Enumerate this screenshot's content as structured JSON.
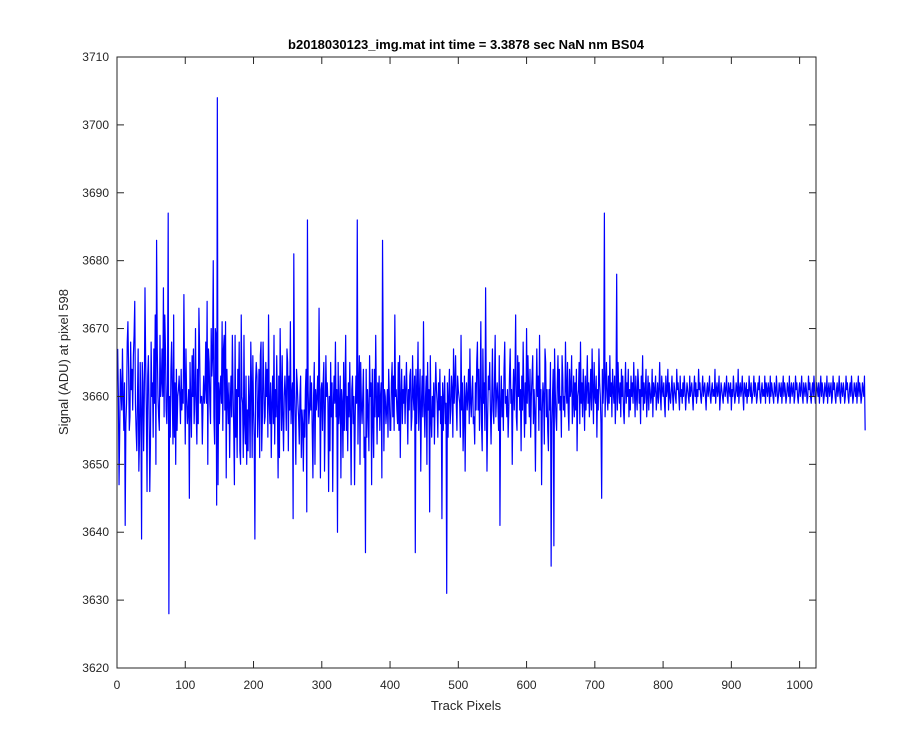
{
  "chart_data": {
    "type": "line",
    "title": "b2018030123_img.mat int time = 3.3878 sec  NaN nm BS04",
    "xlabel": "Track Pixels",
    "ylabel": "Signal (ADU) at pixel 598",
    "xlim": [
      0,
      1024
    ],
    "ylim": [
      3620,
      3710
    ],
    "xticks": [
      "0",
      "100",
      "200",
      "300",
      "400",
      "500",
      "600",
      "700",
      "800",
      "900",
      "1000"
    ],
    "yticks": [
      "3620",
      "3630",
      "3640",
      "3650",
      "3660",
      "3670",
      "3680",
      "3690",
      "3700",
      "3710"
    ],
    "grid": false,
    "legend": "none",
    "line_color": "#0000ff",
    "series": [
      {
        "x_start": 1,
        "x_step": 1,
        "values": [
          3667,
          3660,
          3647,
          3655,
          3664,
          3661,
          3658,
          3667,
          3660,
          3655,
          3662,
          3641,
          3656,
          3659,
          3668,
          3671,
          3664,
          3655,
          3657,
          3668,
          3661,
          3664,
          3658,
          3666,
          3669,
          3674,
          3659,
          3655,
          3652,
          3660,
          3667,
          3649,
          3654,
          3665,
          3658,
          3639,
          3665,
          3662,
          3652,
          3660,
          3676,
          3665,
          3658,
          3646,
          3663,
          3666,
          3658,
          3646,
          3653,
          3668,
          3660,
          3662,
          3654,
          3667,
          3659,
          3672,
          3650,
          3683,
          3667,
          3660,
          3657,
          3655,
          3669,
          3660,
          3662,
          3667,
          3660,
          3676,
          3657,
          3672,
          3667,
          3658,
          3656,
          3662,
          3687,
          3628,
          3660,
          3654,
          3664,
          3668,
          3660,
          3653,
          3672,
          3654,
          3662,
          3650,
          3664,
          3655,
          3660,
          3661,
          3663,
          3660,
          3656,
          3664,
          3658,
          3661,
          3659,
          3675,
          3663,
          3653,
          3667,
          3660,
          3656,
          3658,
          3661,
          3645,
          3665,
          3659,
          3654,
          3666,
          3660,
          3667,
          3656,
          3660,
          3670,
          3658,
          3653,
          3664,
          3656,
          3673,
          3667,
          3659,
          3660,
          3660,
          3653,
          3659,
          3663,
          3659,
          3661,
          3668,
          3659,
          3674,
          3650,
          3667,
          3665,
          3659,
          3656,
          3670,
          3663,
          3666,
          3680,
          3657,
          3653,
          3670,
          3669,
          3644,
          3704,
          3647,
          3662,
          3656,
          3661,
          3663,
          3659,
          3671,
          3655,
          3667,
          3669,
          3658,
          3671,
          3648,
          3664,
          3660,
          3656,
          3662,
          3651,
          3659,
          3663,
          3657,
          3669,
          3661,
          3655,
          3647,
          3669,
          3654,
          3661,
          3651,
          3664,
          3660,
          3668,
          3652,
          3650,
          3672,
          3660,
          3659,
          3651,
          3669,
          3656,
          3653,
          3663,
          3650,
          3658,
          3652,
          3663,
          3659,
          3651,
          3668,
          3662,
          3651,
          3666,
          3658,
          3654,
          3639,
          3662,
          3665,
          3663,
          3654,
          3658,
          3664,
          3651,
          3666,
          3668,
          3652,
          3657,
          3668,
          3662,
          3656,
          3657,
          3665,
          3660,
          3664,
          3654,
          3672,
          3659,
          3656,
          3662,
          3651,
          3659,
          3663,
          3656,
          3669,
          3653,
          3661,
          3657,
          3666,
          3658,
          3648,
          3663,
          3651,
          3670,
          3661,
          3655,
          3666,
          3657,
          3652,
          3660,
          3663,
          3660,
          3655,
          3667,
          3665,
          3652,
          3663,
          3658,
          3671,
          3656,
          3660,
          3662,
          3642,
          3681,
          3661,
          3656,
          3650,
          3664,
          3662,
          3659,
          3657,
          3653,
          3660,
          3663,
          3651,
          3658,
          3656,
          3649,
          3658,
          3654,
          3661,
          3664,
          3643,
          3686,
          3661,
          3656,
          3658,
          3663,
          3658,
          3662,
          3655,
          3648,
          3660,
          3665,
          3650,
          3661,
          3658,
          3660,
          3663,
          3657,
          3673,
          3660,
          3648,
          3661,
          3662,
          3655,
          3662,
          3665,
          3649,
          3657,
          3666,
          3660,
          3662,
          3659,
          3646,
          3660,
          3652,
          3665,
          3657,
          3662,
          3646,
          3659,
          3663,
          3659,
          3668,
          3657,
          3661,
          3640,
          3665,
          3656,
          3658,
          3663,
          3648,
          3661,
          3659,
          3651,
          3665,
          3655,
          3661,
          3669,
          3655,
          3660,
          3652,
          3662,
          3657,
          3665,
          3657,
          3647,
          3661,
          3663,
          3656,
          3660,
          3647,
          3657,
          3663,
          3659,
          3686,
          3653,
          3661,
          3666,
          3650,
          3665,
          3659,
          3656,
          3660,
          3664,
          3651,
          3654,
          3637,
          3664,
          3654,
          3661,
          3658,
          3652,
          3666,
          3660,
          3662,
          3647,
          3664,
          3657,
          3651,
          3664,
          3657,
          3669,
          3660,
          3653,
          3662,
          3657,
          3663,
          3655,
          3660,
          3662,
          3648,
          3683,
          3665,
          3652,
          3661,
          3660,
          3656,
          3658,
          3661,
          3654,
          3664,
          3660,
          3655,
          3655,
          3662,
          3665,
          3657,
          3663,
          3655,
          3672,
          3660,
          3661,
          3658,
          3656,
          3665,
          3655,
          3666,
          3651,
          3660,
          3664,
          3656,
          3661,
          3659,
          3663,
          3656,
          3661,
          3665,
          3660,
          3653,
          3661,
          3658,
          3663,
          3664,
          3655,
          3657,
          3666,
          3660,
          3658,
          3663,
          3637,
          3664,
          3656,
          3661,
          3668,
          3655,
          3660,
          3664,
          3649,
          3659,
          3663,
          3657,
          3671,
          3659,
          3654,
          3660,
          3663,
          3650,
          3665,
          3658,
          3661,
          3643,
          3666,
          3657,
          3654,
          3660,
          3657,
          3662,
          3653,
          3660,
          3665,
          3661,
          3659,
          3654,
          3662,
          3658,
          3664,
          3656,
          3660,
          3642,
          3662,
          3655,
          3660,
          3663,
          3656,
          3659,
          3631,
          3662,
          3654,
          3660,
          3664,
          3656,
          3658,
          3663,
          3661,
          3654,
          3667,
          3659,
          3662,
          3666,
          3659,
          3655,
          3663,
          3661,
          3660,
          3659,
          3654,
          3669,
          3658,
          3662,
          3652,
          3657,
          3663,
          3649,
          3660,
          3662,
          3658,
          3660,
          3664,
          3656,
          3667,
          3659,
          3657,
          3661,
          3663,
          3656,
          3657,
          3653,
          3662,
          3658,
          3665,
          3668,
          3658,
          3664,
          3655,
          3660,
          3671,
          3656,
          3652,
          3667,
          3659,
          3662,
          3655,
          3676,
          3660,
          3649,
          3657,
          3663,
          3661,
          3665,
          3658,
          3653,
          3660,
          3667,
          3658,
          3656,
          3662,
          3669,
          3657,
          3660,
          3662,
          3659,
          3655,
          3666,
          3641,
          3659,
          3663,
          3657,
          3661,
          3655,
          3664,
          3668,
          3659,
          3660,
          3657,
          3661,
          3654,
          3658,
          3663,
          3667,
          3659,
          3661,
          3650,
          3660,
          3664,
          3658,
          3663,
          3672,
          3657,
          3655,
          3666,
          3660,
          3665,
          3658,
          3661,
          3652,
          3663,
          3658,
          3668,
          3660,
          3654,
          3662,
          3656,
          3670,
          3659,
          3666,
          3661,
          3657,
          3664,
          3654,
          3660,
          3663,
          3666,
          3656,
          3661,
          3658,
          3649,
          3660,
          3667,
          3660,
          3663,
          3655,
          3669,
          3658,
          3661,
          3647,
          3658,
          3662,
          3660,
          3653,
          3667,
          3665,
          3657,
          3661,
          3655,
          3652,
          3661,
          3658,
          3665,
          3635,
          3656,
          3660,
          3664,
          3638,
          3667,
          3661,
          3657,
          3655,
          3662,
          3666,
          3659,
          3664,
          3658,
          3660,
          3654,
          3666,
          3663,
          3658,
          3660,
          3657,
          3668,
          3661,
          3659,
          3665,
          3658,
          3655,
          3664,
          3660,
          3661,
          3666,
          3656,
          3659,
          3663,
          3657,
          3662,
          3658,
          3664,
          3652,
          3660,
          3661,
          3665,
          3656,
          3668,
          3659,
          3662,
          3657,
          3664,
          3660,
          3655,
          3663,
          3658,
          3661,
          3666,
          3659,
          3662,
          3657,
          3660,
          3664,
          3658,
          3667,
          3661,
          3656,
          3665,
          3660,
          3659,
          3663,
          3654,
          3661,
          3658,
          3667,
          3662,
          3660,
          3656,
          3645,
          3664,
          3659,
          3662,
          3687,
          3657,
          3661,
          3665,
          3660,
          3658,
          3663,
          3659,
          3666,
          3660,
          3662,
          3657,
          3664,
          3661,
          3659,
          3663,
          3656,
          3660,
          3678,
          3658,
          3665,
          3661,
          3659,
          3662,
          3657,
          3664,
          3660,
          3663,
          3658,
          3656,
          3661,
          3665,
          3659,
          3662,
          3660,
          3664,
          3657,
          3661,
          3658,
          3663,
          3660,
          3662,
          3659,
          3665,
          3661,
          3657,
          3663,
          3660,
          3658,
          3664,
          3662,
          3659,
          3661,
          3656,
          3663,
          3660,
          3666,
          3658,
          3662,
          3659,
          3661,
          3664,
          3657,
          3660,
          3663,
          3658,
          3662,
          3661,
          3659,
          3660,
          3664,
          3657,
          3662,
          3660,
          3661,
          3663,
          3658,
          3660,
          3662,
          3659,
          3661,
          3665,
          3660,
          3658,
          3663,
          3661,
          3660,
          3662,
          3659,
          3657,
          3663,
          3660,
          3661,
          3664,
          3658,
          3662,
          3660,
          3659,
          3661,
          3663,
          3660,
          3658,
          3662,
          3661,
          3660,
          3659,
          3664,
          3661,
          3662,
          3660,
          3658,
          3663,
          3660,
          3661,
          3659,
          3662,
          3660,
          3663,
          3661,
          3658,
          3660,
          3662,
          3661,
          3660,
          3659,
          3663,
          3660,
          3661,
          3662,
          3660,
          3658,
          3661,
          3663,
          3660,
          3662,
          3659,
          3661,
          3660,
          3664,
          3661,
          3662,
          3660,
          3659,
          3661,
          3663,
          3660,
          3661,
          3662,
          3660,
          3658,
          3661,
          3662,
          3660,
          3661,
          3663,
          3660,
          3659,
          3661,
          3662,
          3660,
          3661,
          3660,
          3664,
          3659,
          3661,
          3662,
          3660,
          3661,
          3663,
          3658,
          3660,
          3662,
          3661,
          3660,
          3659,
          3661,
          3662,
          3660,
          3661,
          3663,
          3660,
          3659,
          3662,
          3661,
          3660,
          3662,
          3658,
          3661,
          3660,
          3663,
          3661,
          3659,
          3660,
          3662,
          3661,
          3660,
          3664,
          3659,
          3661,
          3662,
          3660,
          3661,
          3663,
          3660,
          3658,
          3662,
          3661,
          3660,
          3662,
          3659,
          3661,
          3660,
          3663,
          3661,
          3660,
          3662,
          3659,
          3660,
          3661,
          3663,
          3660,
          3662,
          3661,
          3659,
          3660,
          3662,
          3661,
          3663,
          3660,
          3659,
          3661,
          3662,
          3660,
          3661,
          3660,
          3663,
          3659,
          3662,
          3661,
          3660,
          3662,
          3661,
          3659,
          3663,
          3660,
          3662,
          3661,
          3660,
          3659,
          3662,
          3661,
          3660,
          3663,
          3661,
          3659,
          3660,
          3662,
          3661,
          3660,
          3662,
          3659,
          3661,
          3663,
          3660,
          3662,
          3661,
          3659,
          3660,
          3662,
          3661,
          3660,
          3663,
          3659,
          3661,
          3662,
          3660,
          3661,
          3662,
          3659,
          3660,
          3663,
          3661,
          3662,
          3660,
          3659,
          3661,
          3662,
          3660,
          3661,
          3663,
          3660,
          3659,
          3662,
          3661,
          3660,
          3662,
          3661,
          3659,
          3660,
          3663,
          3661,
          3662,
          3660,
          3659,
          3661,
          3662,
          3660,
          3663,
          3661,
          3659,
          3660,
          3662,
          3661,
          3660,
          3662,
          3659,
          3661,
          3663,
          3660,
          3662,
          3661,
          3659,
          3660,
          3662,
          3661,
          3660,
          3663,
          3659,
          3661,
          3662,
          3660,
          3661,
          3662,
          3659,
          3660,
          3663,
          3661,
          3662,
          3660,
          3659,
          3661,
          3662,
          3660,
          3661,
          3663,
          3660,
          3659,
          3662,
          3661,
          3660,
          3662,
          3661,
          3659,
          3660,
          3663,
          3661,
          3662,
          3660,
          3659,
          3661,
          3662,
          3660,
          3663,
          3661,
          3659,
          3660,
          3662,
          3661,
          3660,
          3662,
          3659,
          3661,
          3663,
          3660,
          3662,
          3661,
          3659,
          3660,
          3662,
          3661,
          3660,
          3663,
          3655
        ]
      }
    ]
  }
}
